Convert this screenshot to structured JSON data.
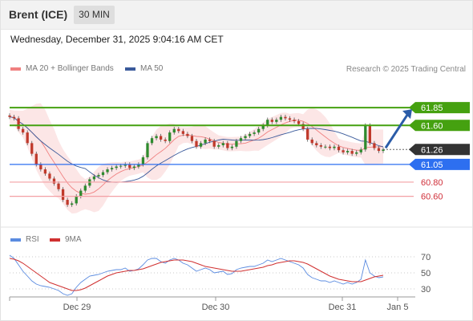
{
  "header": {
    "title": "Brent (ICE)",
    "timeframe": "30 MIN"
  },
  "datetime": "Wednesday, December 31, 2025 9:04:16 AM CET",
  "credit": "Research © 2025 Trading Central",
  "colors": {
    "support_line": "#f3a0a4",
    "resistance_fill": "#45a110",
    "current_fill": "#333333",
    "pivot_fill": "#2d6ff0",
    "ma50": "#3a5a9b",
    "rsi": "#5a8be0",
    "ma9": "#d03030",
    "bollinger": "#f8c8c8",
    "arrow": "#2b5ca8"
  },
  "chart_data": [
    {
      "type": "candlestick",
      "legend": [
        {
          "name": "MA 20 + Bollinger Bands",
          "color": "#f08080"
        },
        {
          "name": "MA 50",
          "color": "#3a5a9b"
        }
      ],
      "x_ticks": [
        "Dec 29",
        "Dec 30",
        "Dec 31",
        "Jan 5"
      ],
      "ylim": [
        60.29,
        61.92
      ],
      "levels": [
        {
          "value": "61.85",
          "kind": "resistance"
        },
        {
          "value": "61.60",
          "kind": "resistance"
        },
        {
          "value": "61.26",
          "kind": "current"
        },
        {
          "value": "61.05",
          "kind": "pivot"
        },
        {
          "value": "60.80",
          "kind": "support"
        },
        {
          "value": "60.60",
          "kind": "support"
        }
      ],
      "close": [
        61.72,
        61.7,
        61.55,
        61.5,
        61.35,
        61.2,
        61.05,
        60.98,
        60.92,
        60.85,
        60.78,
        60.7,
        60.55,
        60.48,
        60.5,
        60.6,
        60.68,
        60.75,
        60.84,
        60.88,
        60.9,
        60.94,
        60.98,
        61.0,
        61.02,
        61.03,
        61.05,
        61.0,
        61.02,
        61.05,
        61.15,
        61.35,
        61.42,
        61.45,
        61.4,
        61.38,
        61.5,
        61.55,
        61.52,
        61.48,
        61.45,
        61.38,
        61.3,
        61.35,
        61.4,
        61.38,
        61.3,
        61.32,
        61.35,
        61.28,
        61.3,
        61.38,
        61.42,
        61.45,
        61.48,
        61.5,
        61.55,
        61.6,
        61.68,
        61.65,
        61.68,
        61.72,
        61.7,
        61.68,
        61.66,
        61.62,
        61.55,
        61.4,
        61.35,
        61.32,
        61.3,
        61.3,
        61.28,
        61.3,
        61.25,
        61.22,
        61.24,
        61.2,
        61.22,
        61.26,
        61.6,
        61.35,
        61.28,
        61.24,
        61.26
      ],
      "rsi_yticks": [
        70,
        50,
        30
      ],
      "rsi": [
        72,
        68,
        60,
        52,
        46,
        40,
        36,
        34,
        33,
        32,
        30,
        28,
        24,
        22,
        24,
        32,
        38,
        42,
        46,
        47,
        48,
        50,
        52,
        53,
        54,
        54,
        56,
        52,
        53,
        55,
        60,
        66,
        68,
        68,
        64,
        62,
        66,
        68,
        66,
        62,
        60,
        56,
        52,
        54,
        56,
        54,
        50,
        51,
        52,
        48,
        49,
        54,
        56,
        57,
        58,
        58,
        60,
        62,
        66,
        64,
        66,
        68,
        66,
        64,
        62,
        60,
        56,
        48,
        44,
        42,
        40,
        40,
        38,
        40,
        38,
        36,
        38,
        36,
        38,
        42,
        66,
        50,
        46,
        44,
        45
      ],
      "ma9": [
        68,
        67,
        65,
        62,
        58,
        54,
        50,
        46,
        42,
        38,
        36,
        34,
        32,
        30,
        28,
        28,
        29,
        31,
        34,
        37,
        40,
        43,
        46,
        48,
        50,
        51,
        52,
        53,
        53,
        54,
        55,
        57,
        59,
        61,
        63,
        64,
        65,
        66,
        66,
        66,
        65,
        64,
        62,
        60,
        58,
        57,
        56,
        55,
        54,
        53,
        52,
        52,
        52,
        53,
        54,
        55,
        56,
        57,
        59,
        60,
        62,
        63,
        64,
        65,
        65,
        64,
        63,
        61,
        58,
        55,
        52,
        49,
        46,
        44,
        42,
        41,
        40,
        39,
        39,
        39,
        41,
        43,
        45,
        46,
        47
      ]
    }
  ],
  "rsi_legend": [
    {
      "name": "RSI",
      "color": "#5a8be0"
    },
    {
      "name": "9MA",
      "color": "#d03030"
    }
  ]
}
